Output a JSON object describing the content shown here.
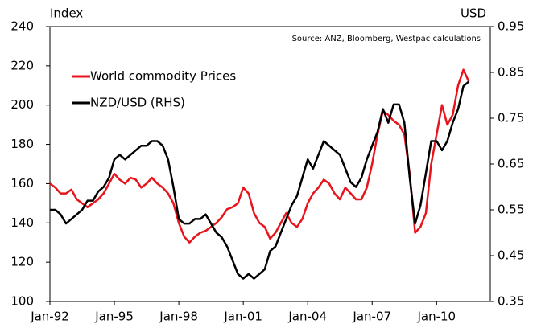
{
  "chart_data": {
    "type": "line",
    "y_axis_label": "Index",
    "y2_axis_label": "USD",
    "source": "Source: ANZ, Bloomberg, Westpac calculations",
    "x": [
      1992,
      1992.25,
      1992.5,
      1992.75,
      1993,
      1993.25,
      1993.5,
      1993.75,
      1994,
      1994.25,
      1994.5,
      1994.75,
      1995,
      1995.25,
      1995.5,
      1995.75,
      1996,
      1996.25,
      1996.5,
      1996.75,
      1997,
      1997.25,
      1997.5,
      1997.75,
      1998,
      1998.25,
      1998.5,
      1998.75,
      1999,
      1999.25,
      1999.5,
      1999.75,
      2000,
      2000.25,
      2000.5,
      2000.75,
      2001,
      2001.25,
      2001.5,
      2001.75,
      2002,
      2002.25,
      2002.5,
      2002.75,
      2003,
      2003.25,
      2003.5,
      2003.75,
      2004,
      2004.25,
      2004.5,
      2004.75,
      2005,
      2005.25,
      2005.5,
      2005.75,
      2006,
      2006.25,
      2006.5,
      2006.75,
      2007,
      2007.25,
      2007.5,
      2007.75,
      2008,
      2008.25,
      2008.5,
      2008.75,
      2009,
      2009.25,
      2009.5,
      2009.75,
      2010,
      2010.25,
      2010.5,
      2010.75,
      2011,
      2011.25,
      2011.5
    ],
    "xlim": [
      1992,
      2012.5
    ],
    "xticks": [
      {
        "value": 1992,
        "label": "Jan-92"
      },
      {
        "value": 1995,
        "label": "Jan-95"
      },
      {
        "value": 1998,
        "label": "Jan-98"
      },
      {
        "value": 2001,
        "label": "Jan-01"
      },
      {
        "value": 2004,
        "label": "Jan-04"
      },
      {
        "value": 2007,
        "label": "Jan-07"
      },
      {
        "value": 2010,
        "label": "Jan-10"
      }
    ],
    "ylim": [
      100,
      240
    ],
    "yticks": [
      100,
      120,
      140,
      160,
      180,
      200,
      220,
      240
    ],
    "y2lim": [
      0.35,
      0.95
    ],
    "y2ticks": [
      0.35,
      0.45,
      0.55,
      0.65,
      0.75,
      0.85,
      0.95
    ],
    "series": [
      {
        "name": "World commodity Prices",
        "color": "#e8141c",
        "values": [
          160,
          158,
          155,
          155,
          157,
          152,
          150,
          148,
          150,
          152,
          155,
          160,
          165,
          162,
          160,
          163,
          162,
          158,
          160,
          163,
          160,
          158,
          155,
          150,
          140,
          133,
          130,
          133,
          135,
          136,
          138,
          140,
          143,
          147,
          148,
          150,
          158,
          155,
          145,
          140,
          138,
          132,
          135,
          140,
          145,
          140,
          138,
          142,
          150,
          155,
          158,
          162,
          160,
          155,
          152,
          158,
          155,
          152,
          152,
          158,
          170,
          185,
          197,
          195,
          192,
          190,
          185,
          165,
          135,
          138,
          145,
          170,
          185,
          200,
          190,
          195,
          210,
          218,
          212
        ]
      },
      {
        "name": "NZD/USD (RHS)",
        "color": "#000000",
        "axis": "y2",
        "values": [
          0.55,
          0.55,
          0.54,
          0.52,
          0.53,
          0.54,
          0.55,
          0.57,
          0.57,
          0.59,
          0.6,
          0.62,
          0.66,
          0.67,
          0.66,
          0.67,
          0.68,
          0.69,
          0.69,
          0.7,
          0.7,
          0.69,
          0.66,
          0.6,
          0.53,
          0.52,
          0.52,
          0.53,
          0.53,
          0.54,
          0.52,
          0.5,
          0.49,
          0.47,
          0.44,
          0.41,
          0.4,
          0.41,
          0.4,
          0.41,
          0.42,
          0.46,
          0.47,
          0.5,
          0.53,
          0.56,
          0.58,
          0.62,
          0.66,
          0.64,
          0.67,
          0.7,
          0.69,
          0.68,
          0.67,
          0.64,
          0.61,
          0.6,
          0.62,
          0.66,
          0.69,
          0.72,
          0.77,
          0.74,
          0.78,
          0.78,
          0.74,
          0.62,
          0.52,
          0.56,
          0.63,
          0.7,
          0.7,
          0.68,
          0.7,
          0.74,
          0.77,
          0.82,
          0.83
        ]
      }
    ]
  }
}
